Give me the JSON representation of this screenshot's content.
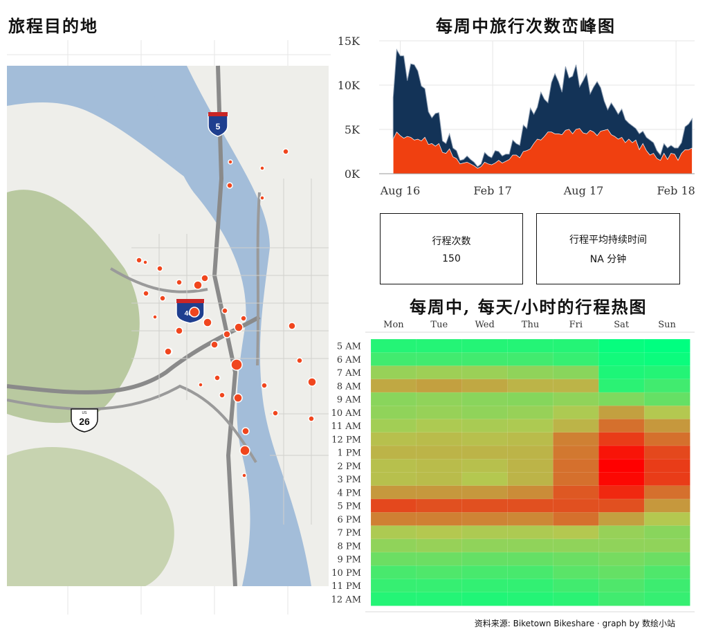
{
  "titles": {
    "map": "旅程目的地",
    "ridge": "每周中旅行次数峦峰图",
    "heatmap": "每周中, 每天/小时的行程热图"
  },
  "map": {
    "highway_i5": "5",
    "highway_i405": "405",
    "highway_us26": "26",
    "us_label": "US",
    "colors": {
      "water": "#a3bdd9",
      "land": "#eeeeea",
      "park": "#b9c9a0",
      "road": "#8a8a8a",
      "point": "#f0461e"
    },
    "destinations": [
      {
        "id": 1,
        "size": 3
      },
      {
        "id": 2,
        "size": 4
      },
      {
        "id": 3,
        "size": 4
      },
      {
        "id": 4,
        "size": 3
      },
      {
        "id": 5,
        "size": 3
      },
      {
        "id": 6,
        "size": 4
      },
      {
        "id": 7,
        "size": 5
      },
      {
        "id": 8,
        "size": 6
      },
      {
        "id": 9,
        "size": 7
      },
      {
        "id": 10,
        "size": 5
      },
      {
        "id": 11,
        "size": 6
      },
      {
        "id": 12,
        "size": 8
      },
      {
        "id": 13,
        "size": 4
      },
      {
        "id": 14,
        "size": 5
      },
      {
        "id": 15,
        "size": 3
      }
    ]
  },
  "chart_data": [
    {
      "type": "area",
      "title": "每周中旅行次数峦峰图",
      "x_tick_labels": [
        "Aug 16",
        "Feb 17",
        "Aug 17",
        "Feb 18"
      ],
      "y_tick_labels": [
        "0K",
        "5K",
        "10K",
        "15K"
      ],
      "ylim": [
        0,
        15000
      ],
      "grid": true,
      "x": [
        "2016-07-18",
        "2016-07-25",
        "2016-08-01",
        "2016-08-08",
        "2016-08-15",
        "2016-08-22",
        "2016-08-29",
        "2016-09-05",
        "2016-09-12",
        "2016-09-19",
        "2016-09-26",
        "2016-10-03",
        "2016-10-10",
        "2016-10-17",
        "2016-10-24",
        "2016-10-31",
        "2016-11-07",
        "2016-11-14",
        "2016-11-21",
        "2016-11-28",
        "2016-12-05",
        "2016-12-12",
        "2016-12-19",
        "2016-12-26",
        "2017-01-02",
        "2017-01-09",
        "2017-01-16",
        "2017-01-23",
        "2017-01-30",
        "2017-02-06",
        "2017-02-13",
        "2017-02-20",
        "2017-02-27",
        "2017-03-06",
        "2017-03-13",
        "2017-03-20",
        "2017-03-27",
        "2017-04-03",
        "2017-04-10",
        "2017-04-17",
        "2017-04-24",
        "2017-05-01",
        "2017-05-08",
        "2017-05-15",
        "2017-05-22",
        "2017-05-29",
        "2017-06-05",
        "2017-06-12",
        "2017-06-19",
        "2017-06-26",
        "2017-07-03",
        "2017-07-10",
        "2017-07-17",
        "2017-07-24",
        "2017-07-31",
        "2017-08-07",
        "2017-08-14",
        "2017-08-21",
        "2017-08-28",
        "2017-09-04",
        "2017-09-11",
        "2017-09-18",
        "2017-09-25",
        "2017-10-02",
        "2017-10-09",
        "2017-10-16",
        "2017-10-23",
        "2017-10-30",
        "2017-11-06",
        "2017-11-13",
        "2017-11-20",
        "2017-11-27",
        "2017-12-04",
        "2017-12-11",
        "2017-12-18",
        "2017-12-25",
        "2018-01-01",
        "2018-01-08",
        "2018-01-15",
        "2018-01-22",
        "2018-01-29",
        "2018-02-05",
        "2018-02-12",
        "2018-02-19",
        "2018-02-26",
        "2018-03-05"
      ],
      "series": [
        {
          "color": "#f04010",
          "values": [
            3900,
            4700,
            4300,
            4000,
            4200,
            4100,
            3800,
            3900,
            3700,
            4100,
            3300,
            3400,
            3100,
            3400,
            2400,
            2300,
            2800,
            1900,
            1700,
            1100,
            1200,
            1300,
            1100,
            900,
            600,
            800,
            1300,
            1100,
            1000,
            1200,
            1500,
            1200,
            1400,
            1600,
            2100,
            2100,
            1800,
            2500,
            2600,
            2800,
            3400,
            3900,
            3800,
            4200,
            4700,
            4700,
            4500,
            4500,
            4400,
            4900,
            5000,
            4500,
            5000,
            5100,
            4600,
            4500,
            4900,
            4700,
            4300,
            4800,
            4900,
            5000,
            4400,
            4200,
            3900,
            4100,
            3500,
            3900,
            3500,
            3800,
            2700,
            3400,
            2600,
            2100,
            2300,
            1700,
            1500,
            2300,
            1600,
            2300,
            2200,
            1500,
            2300,
            2700,
            2700,
            2900
          ]
        },
        {
          "color": "#133357",
          "values": [
            4700,
            9300,
            9000,
            9300,
            6300,
            8300,
            8500,
            7700,
            6200,
            5500,
            3700,
            2900,
            3700,
            3500,
            1300,
            1100,
            1700,
            1000,
            900,
            400,
            400,
            700,
            500,
            400,
            200,
            300,
            1100,
            900,
            800,
            1400,
            1000,
            800,
            800,
            600,
            1700,
            1300,
            1400,
            3000,
            2500,
            4600,
            3300,
            3600,
            5400,
            4200,
            3300,
            5600,
            6800,
            5900,
            4800,
            7200,
            5800,
            6500,
            7300,
            4700,
            5900,
            6800,
            4100,
            5100,
            6100,
            4900,
            3300,
            2200,
            3600,
            3200,
            2800,
            3200,
            2600,
            1800,
            1900,
            1300,
            1800,
            1400,
            1500,
            1700,
            1200,
            900,
            600,
            1100,
            1300,
            900,
            700,
            1400,
            1200,
            2600,
            2900,
            3300
          ]
        }
      ]
    },
    {
      "type": "heatmap",
      "title": "每周中, 每天/小时的行程热图",
      "x_categories": [
        "Mon",
        "Tue",
        "Wed",
        "Thu",
        "Fri",
        "Sat",
        "Sun"
      ],
      "y_categories": [
        "5 AM",
        "6 AM",
        "7 AM",
        "8 AM",
        "9 AM",
        "10 AM",
        "11 AM",
        "12 PM",
        "1 PM",
        "2 PM",
        "3 PM",
        "4 PM",
        "5 PM",
        "6 PM",
        "7 PM",
        "8 PM",
        "9 PM",
        "10 PM",
        "11 PM",
        "12 AM"
      ],
      "color_scale": {
        "low": "#00ff80",
        "mid": "#b4c850",
        "high": "#ff0000"
      },
      "values": [
        [
          0.1,
          0.1,
          0.1,
          0.1,
          0.1,
          0.02,
          0.0
        ],
        [
          0.18,
          0.18,
          0.18,
          0.18,
          0.15,
          0.05,
          0.03
        ],
        [
          0.42,
          0.44,
          0.43,
          0.4,
          0.38,
          0.08,
          0.1
        ],
        [
          0.58,
          0.6,
          0.58,
          0.55,
          0.55,
          0.12,
          0.18
        ],
        [
          0.38,
          0.4,
          0.38,
          0.37,
          0.4,
          0.35,
          0.28
        ],
        [
          0.4,
          0.42,
          0.4,
          0.42,
          0.48,
          0.6,
          0.5
        ],
        [
          0.45,
          0.48,
          0.47,
          0.48,
          0.55,
          0.72,
          0.62
        ],
        [
          0.52,
          0.53,
          0.52,
          0.53,
          0.68,
          0.85,
          0.72
        ],
        [
          0.55,
          0.55,
          0.55,
          0.55,
          0.7,
          0.95,
          0.82
        ],
        [
          0.52,
          0.53,
          0.52,
          0.55,
          0.72,
          1.0,
          0.85
        ],
        [
          0.52,
          0.53,
          0.5,
          0.55,
          0.72,
          0.98,
          0.85
        ],
        [
          0.62,
          0.62,
          0.62,
          0.65,
          0.78,
          0.9,
          0.72
        ],
        [
          0.82,
          0.8,
          0.8,
          0.8,
          0.8,
          0.8,
          0.62
        ],
        [
          0.68,
          0.68,
          0.67,
          0.66,
          0.72,
          0.6,
          0.5
        ],
        [
          0.48,
          0.5,
          0.48,
          0.48,
          0.5,
          0.42,
          0.38
        ],
        [
          0.4,
          0.42,
          0.4,
          0.4,
          0.4,
          0.4,
          0.4
        ],
        [
          0.3,
          0.3,
          0.28,
          0.28,
          0.3,
          0.33,
          0.3
        ],
        [
          0.2,
          0.22,
          0.2,
          0.2,
          0.25,
          0.28,
          0.22
        ],
        [
          0.15,
          0.15,
          0.14,
          0.14,
          0.18,
          0.22,
          0.17
        ],
        [
          0.1,
          0.1,
          0.09,
          0.1,
          0.12,
          0.18,
          0.15
        ]
      ]
    }
  ],
  "kpis": [
    {
      "label": "行程次数",
      "value": "150"
    },
    {
      "label": "行程平均持续时间",
      "value": "NA 分钟"
    }
  ],
  "source_note": "资料来源: Biketown Bikeshare · graph by 数绘小站"
}
